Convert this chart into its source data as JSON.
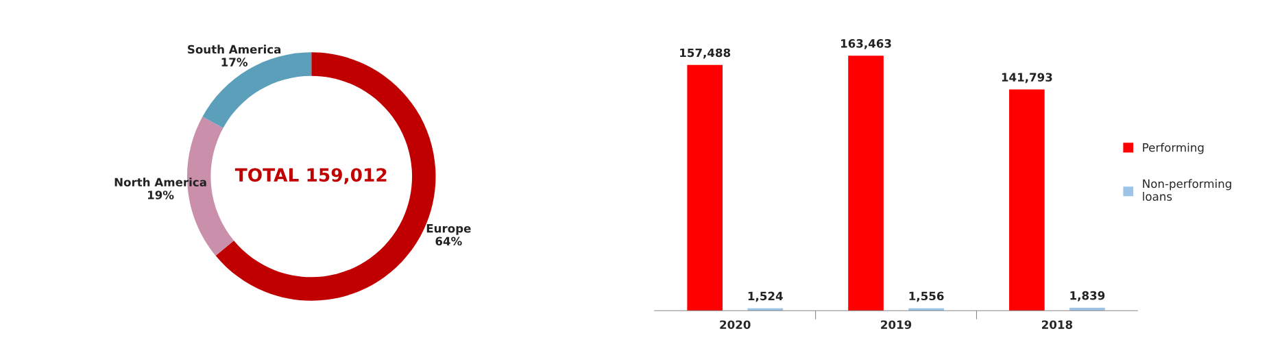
{
  "chart_data": [
    {
      "type": "donut",
      "categories": [
        "Europe",
        "North America",
        "South America"
      ],
      "values": [
        64,
        19,
        17
      ],
      "colors": [
        "#c00000",
        "#c98fab",
        "#5b9fba"
      ],
      "value_labels": [
        "64%",
        "19%",
        "17%"
      ],
      "annotations": [
        "TOTAL 159,012"
      ]
    },
    {
      "type": "bar",
      "categories": [
        "2020",
        "2019",
        "2018"
      ],
      "series": [
        {
          "name": "Performing",
          "color": "#ff0000",
          "values": [
            157488,
            163463,
            141793
          ],
          "value_labels": [
            "157,488",
            "163,463",
            "141,793"
          ]
        },
        {
          "name": "Non-performing loans",
          "color": "#9dc3e6",
          "values": [
            1524,
            1556,
            1839
          ],
          "value_labels": [
            "1,524",
            "1,556",
            "1,839"
          ]
        }
      ],
      "legend": "right"
    }
  ]
}
